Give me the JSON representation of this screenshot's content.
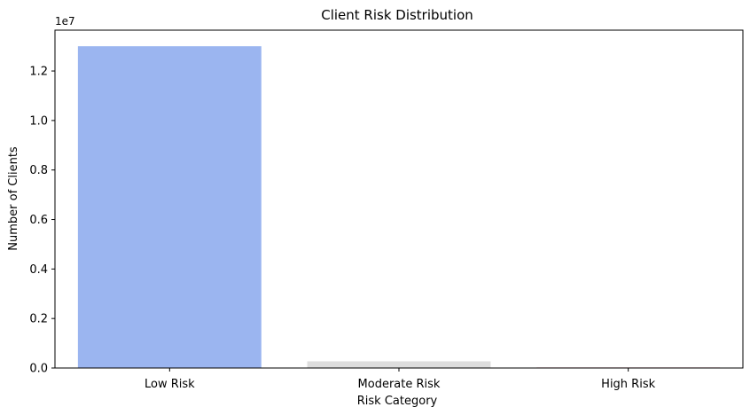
{
  "chart_data": {
    "type": "bar",
    "title": "Client Risk Distribution",
    "xlabel": "Risk Category",
    "ylabel": "Number of Clients",
    "categories": [
      "Low Risk",
      "Moderate Risk",
      "High Risk"
    ],
    "values": [
      13000000,
      270000,
      20000
    ],
    "colors": [
      "#9bb5f0",
      "#dddddd",
      "#b40426"
    ],
    "ylim": [
      0,
      13650000
    ],
    "yticks": [
      0,
      2000000,
      4000000,
      6000000,
      8000000,
      10000000,
      12000000
    ],
    "ytick_labels": [
      "0.0",
      "0.2",
      "0.4",
      "0.6",
      "0.8",
      "1.0",
      "1.2"
    ],
    "offset_label": "1e7",
    "grid": false,
    "legend": "none"
  }
}
